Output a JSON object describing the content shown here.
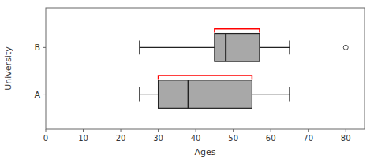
{
  "chart_data": {
    "type": "box",
    "orientation": "horizontal",
    "xlabel": "Ages",
    "ylabel": "University",
    "categories": [
      "A",
      "B"
    ],
    "boxes": [
      {
        "whisker_low": 25,
        "q1": 30,
        "median": 38,
        "q3": 55,
        "whisker_high": 65,
        "outlier": null
      },
      {
        "whisker_low": 25,
        "q1": 45,
        "median": 48,
        "q3": 57,
        "whisker_high": 65,
        "outlier": 80
      }
    ],
    "color": "#a8a8a8",
    "brackets": [
      {
        "x1": 30,
        "x2": 55,
        "color": "red"
      },
      {
        "x1": 45,
        "x2": 57,
        "color": "red"
      }
    ],
    "xlim": [
      0,
      85
    ],
    "xticks": [
      0,
      10,
      20,
      30,
      40,
      50,
      60,
      70,
      80
    ]
  }
}
